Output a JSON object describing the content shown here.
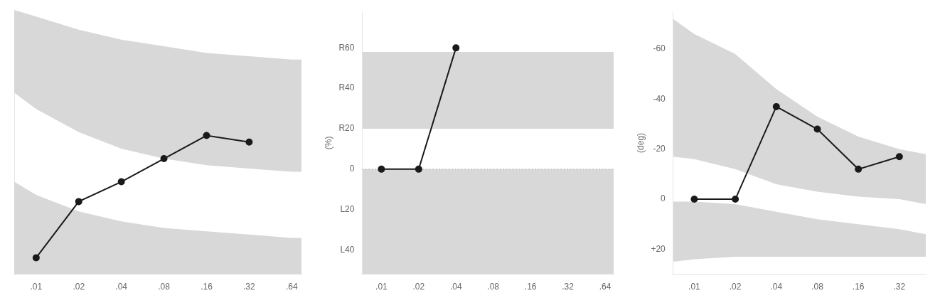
{
  "chart_data": [
    {
      "type": "line",
      "x": [
        0.01,
        0.02,
        0.04,
        0.08,
        0.16,
        0.32
      ],
      "values": [
        0.05,
        0.22,
        0.28,
        0.35,
        0.42,
        0.4
      ],
      "color": "#1a1a1a",
      "marker": "circle",
      "line_style": "solid",
      "log": "x",
      "grid": false,
      "tick_labels": "x",
      "xlim": [
        0.007,
        0.75
      ],
      "xticks": [
        {
          "value": 0.01,
          "label": ".01"
        },
        {
          "value": 0.02,
          "label": ".02"
        },
        {
          "value": 0.04,
          "label": ".04"
        },
        {
          "value": 0.08,
          "label": ".08"
        },
        {
          "value": 0.16,
          "label": ".16"
        },
        {
          "value": 0.32,
          "label": ".32"
        },
        {
          "value": 0.64,
          "label": ".64"
        }
      ],
      "ylim": [
        0.0,
        0.8
      ],
      "yticks": [],
      "bands": [
        {
          "x": [
            0.007,
            0.01,
            0.02,
            0.04,
            0.08,
            0.16,
            0.32,
            0.64,
            0.75
          ],
          "y1": [
            0.55,
            0.5,
            0.43,
            0.38,
            0.35,
            0.33,
            0.32,
            0.31,
            0.31
          ],
          "y2": [
            0.8,
            0.78,
            0.74,
            0.71,
            0.69,
            0.67,
            0.66,
            0.65,
            0.65
          ],
          "color": "#d8d8d8"
        },
        {
          "x": [
            0.007,
            0.01,
            0.02,
            0.04,
            0.08,
            0.16,
            0.32,
            0.64,
            0.75
          ],
          "y1": [
            0.0,
            0.0,
            0.0,
            0.0,
            0.0,
            0.0,
            0.0,
            0.0,
            0.0
          ],
          "y2": [
            0.28,
            0.24,
            0.19,
            0.16,
            0.14,
            0.13,
            0.12,
            0.11,
            0.11
          ],
          "color": "#d8d8d8"
        }
      ]
    },
    {
      "type": "line",
      "x": [
        0.01,
        0.02,
        0.04
      ],
      "values": [
        0.0,
        0.0,
        60.0
      ],
      "color": "#1a1a1a",
      "marker": "circle",
      "line_style": "solid",
      "log": "x",
      "grid": false,
      "ylabel": "(%)",
      "xlim": [
        0.007,
        0.75
      ],
      "xticks": [
        {
          "value": 0.01,
          "label": ".01"
        },
        {
          "value": 0.02,
          "label": ".02"
        },
        {
          "value": 0.04,
          "label": ".04"
        },
        {
          "value": 0.08,
          "label": ".08"
        },
        {
          "value": 0.16,
          "label": ".16"
        },
        {
          "value": 0.32,
          "label": ".32"
        },
        {
          "value": 0.64,
          "label": ".64"
        }
      ],
      "ylim": [
        -52,
        78
      ],
      "yticks": [
        {
          "value": -40,
          "label": "L40"
        },
        {
          "value": -20,
          "label": "L20"
        },
        0,
        {
          "value": 20,
          "label": "R20"
        },
        {
          "value": 40,
          "label": "R40"
        },
        {
          "value": 60,
          "label": "R60"
        }
      ],
      "bands": [
        {
          "x": [
            0.007,
            0.75
          ],
          "y1": [
            -52,
            -52
          ],
          "y2": [
            58,
            58
          ],
          "color": "#d8d8d8"
        },
        {
          "x": [
            0.007,
            0.75
          ],
          "y1": [
            0,
            0
          ],
          "y2": [
            20,
            20
          ],
          "color": "#ffffff"
        }
      ],
      "hline": {
        "y": 0,
        "color": "#aaaaaa",
        "line_style": "dotted"
      }
    },
    {
      "type": "line",
      "x": [
        0.01,
        0.02,
        0.04,
        0.08,
        0.16,
        0.32
      ],
      "values": [
        0.0,
        0.0,
        -37.0,
        -28.0,
        -12.0,
        -17.0
      ],
      "color": "#1a1a1a",
      "marker": "circle",
      "line_style": "solid",
      "log": "x",
      "grid": false,
      "ylabel": "(deg)",
      "xlim": [
        0.007,
        0.5
      ],
      "xticks": [
        {
          "value": 0.01,
          "label": ".01"
        },
        {
          "value": 0.02,
          "label": ".02"
        },
        {
          "value": 0.04,
          "label": ".04"
        },
        {
          "value": 0.08,
          "label": ".08"
        },
        {
          "value": 0.16,
          "label": ".16"
        },
        {
          "value": 0.32,
          "label": ".32"
        }
      ],
      "ylim": [
        30,
        -75
      ],
      "yticks": [
        {
          "value": 20,
          "label": "+20"
        },
        0,
        -20,
        -40,
        -60
      ],
      "bands": [
        {
          "x": [
            0.007,
            0.01,
            0.02,
            0.04,
            0.08,
            0.16,
            0.32,
            0.5
          ],
          "y1": [
            -17,
            -16,
            -12,
            -6,
            -3,
            -1,
            0,
            2
          ],
          "y2": [
            -72,
            -66,
            -58,
            -44,
            -33,
            -25,
            -20,
            -18
          ],
          "color": "#d8d8d8"
        },
        {
          "x": [
            0.007,
            0.01,
            0.02,
            0.04,
            0.08,
            0.16,
            0.32,
            0.5
          ],
          "y1": [
            1,
            1,
            2,
            5,
            8,
            10,
            12,
            14
          ],
          "y2": [
            25,
            24,
            23,
            23,
            23,
            23,
            23,
            23
          ],
          "color": "#d8d8d8"
        }
      ]
    }
  ]
}
